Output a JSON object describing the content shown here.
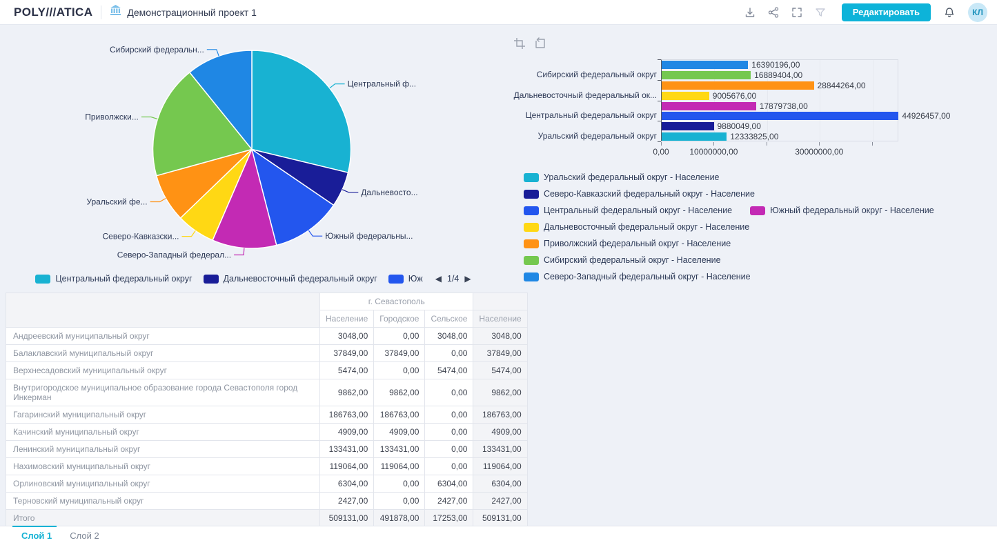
{
  "topbar": {
    "logo_text": "POLY///ATICA",
    "project_title": "Демонстрационный проект 1",
    "edit_button_label": "Редактировать",
    "avatar_initials": "КЛ",
    "accent_color": "#0db3d9"
  },
  "chart_data": [
    {
      "type": "pie",
      "title": "",
      "value_label": "Население",
      "slices": [
        {
          "label": "Центральный федеральный округ",
          "label_shown": "Центральный ф...",
          "value": 44926457,
          "color": "#18b2d2"
        },
        {
          "label": "Дальневосточный федеральный округ",
          "label_shown": "Дальневосто...",
          "value": 9005676,
          "color": "#191d98"
        },
        {
          "label": "Южный федеральный округ",
          "label_shown": "Южный федеральны...",
          "value": 17879738,
          "color": "#2356ee"
        },
        {
          "label": "Северо-Западный федеральный округ",
          "label_shown": "Северо-Западный федерал...",
          "value": 16390196,
          "color": "#c32ab4"
        },
        {
          "label": "Северо-Кавказский федеральный округ",
          "label_shown": "Северо-Кавказски...",
          "value": 9880049,
          "color": "#ffd814"
        },
        {
          "label": "Уральский федеральный округ",
          "label_shown": "Уральский фе...",
          "value": 12333825,
          "color": "#ff9214"
        },
        {
          "label": "Приволжский федеральный округ",
          "label_shown": "Приволжски...",
          "value": 28844264,
          "color": "#75c84f"
        },
        {
          "label": "Сибирский федеральный округ",
          "label_shown": "Сибирский федеральн...",
          "value": 16889404,
          "color": "#1f87e4"
        }
      ],
      "legend_visible": [
        {
          "label": "Центральный федеральный округ",
          "color": "#18b2d2"
        },
        {
          "label": "Дальневосточный федеральный округ",
          "color": "#191d98"
        },
        {
          "label": "Юж",
          "color": "#2356ee"
        }
      ],
      "legend_page": "1/4"
    },
    {
      "type": "bar",
      "orientation": "horizontal",
      "xmax": 45000000,
      "bars": [
        {
          "name": "Северо-Западный федеральный округ",
          "value": 16390196,
          "display": "16390196,00",
          "color": "#1f87e4"
        },
        {
          "name": "Сибирский федеральный округ",
          "value": 16889404,
          "display": "16889404,00",
          "color": "#75c84f"
        },
        {
          "name": "Приволжский федеральный округ",
          "value": 28844264,
          "display": "28844264,00",
          "color": "#ff9214"
        },
        {
          "name": "Дальневосточный федеральный округ",
          "value": 9005676,
          "display": "9005676,00",
          "color": "#ffd814"
        },
        {
          "name": "Южный федеральный округ",
          "value": 17879738,
          "display": "17879738,00",
          "color": "#c32ab4"
        },
        {
          "name": "Центральный федеральный округ",
          "value": 44926457,
          "display": "44926457,00",
          "color": "#2356ee"
        },
        {
          "name": "Северо-Кавказский федеральный округ",
          "value": 9880049,
          "display": "9880049,00",
          "color": "#191d98"
        },
        {
          "name": "Уральский федеральный округ",
          "value": 12333825,
          "display": "12333825,00",
          "color": "#18b2d2"
        }
      ],
      "y_axis_labels": [
        "Сибирский федеральный округ",
        "Дальневосточный федеральный ок...",
        "Центральный федеральный округ",
        "Уральский федеральный округ"
      ],
      "x_ticks": [
        {
          "v": 0,
          "label": "0,00"
        },
        {
          "v": 10000000,
          "label": "10000000,00"
        },
        {
          "v": 20000000,
          "label": ""
        },
        {
          "v": 30000000,
          "label": "30000000,00"
        },
        {
          "v": 40000000,
          "label": ""
        }
      ],
      "legend_rows": [
        [
          {
            "label": "Уральский федеральный округ - Население",
            "color": "#18b2d2"
          }
        ],
        [
          {
            "label": "Северо-Кавказский федеральный округ - Население",
            "color": "#191d98"
          }
        ],
        [
          {
            "label": "Центральный федеральный округ - Население",
            "color": "#2356ee"
          },
          {
            "label": "Южный федеральный округ - Население",
            "color": "#c32ab4"
          }
        ],
        [
          {
            "label": "Дальневосточный федеральный округ - Население",
            "color": "#ffd814"
          }
        ],
        [
          {
            "label": "Приволжский федеральный округ - Население",
            "color": "#ff9214"
          }
        ],
        [
          {
            "label": "Сибирский федеральный округ - Население",
            "color": "#75c84f"
          }
        ],
        [
          {
            "label": "Северо-Западный федеральный округ - Население",
            "color": "#1f87e4"
          }
        ]
      ]
    }
  ],
  "table": {
    "group_header": "г. Севастополь",
    "columns": [
      "Население",
      "Городское",
      "Сельское",
      "Население"
    ],
    "rows": [
      [
        "Андреевский муниципальный округ",
        "3048,00",
        "0,00",
        "3048,00",
        "3048,00"
      ],
      [
        "Балаклавский муниципальный округ",
        "37849,00",
        "37849,00",
        "0,00",
        "37849,00"
      ],
      [
        "Верхнесадовский муниципальный округ",
        "5474,00",
        "0,00",
        "5474,00",
        "5474,00"
      ],
      [
        "Внутригородское муниципальное образование города Севастополя город Инкерман",
        "9862,00",
        "9862,00",
        "0,00",
        "9862,00"
      ],
      [
        "Гагаринский муниципальный округ",
        "186763,00",
        "186763,00",
        "0,00",
        "186763,00"
      ],
      [
        "Качинский муниципальный округ",
        "4909,00",
        "4909,00",
        "0,00",
        "4909,00"
      ],
      [
        "Ленинский муниципальный округ",
        "133431,00",
        "133431,00",
        "0,00",
        "133431,00"
      ],
      [
        "Нахимовский муниципальный округ",
        "119064,00",
        "119064,00",
        "0,00",
        "119064,00"
      ],
      [
        "Орлиновский муниципальный округ",
        "6304,00",
        "0,00",
        "6304,00",
        "6304,00"
      ],
      [
        "Терновский муниципальный округ",
        "2427,00",
        "0,00",
        "2427,00",
        "2427,00"
      ]
    ],
    "total_row": [
      "Итого",
      "509131,00",
      "491878,00",
      "17253,00",
      "509131,00"
    ]
  },
  "footer": {
    "tabs": [
      {
        "label": "Слой 1",
        "active": true
      },
      {
        "label": "Слой 2",
        "active": false
      }
    ]
  }
}
